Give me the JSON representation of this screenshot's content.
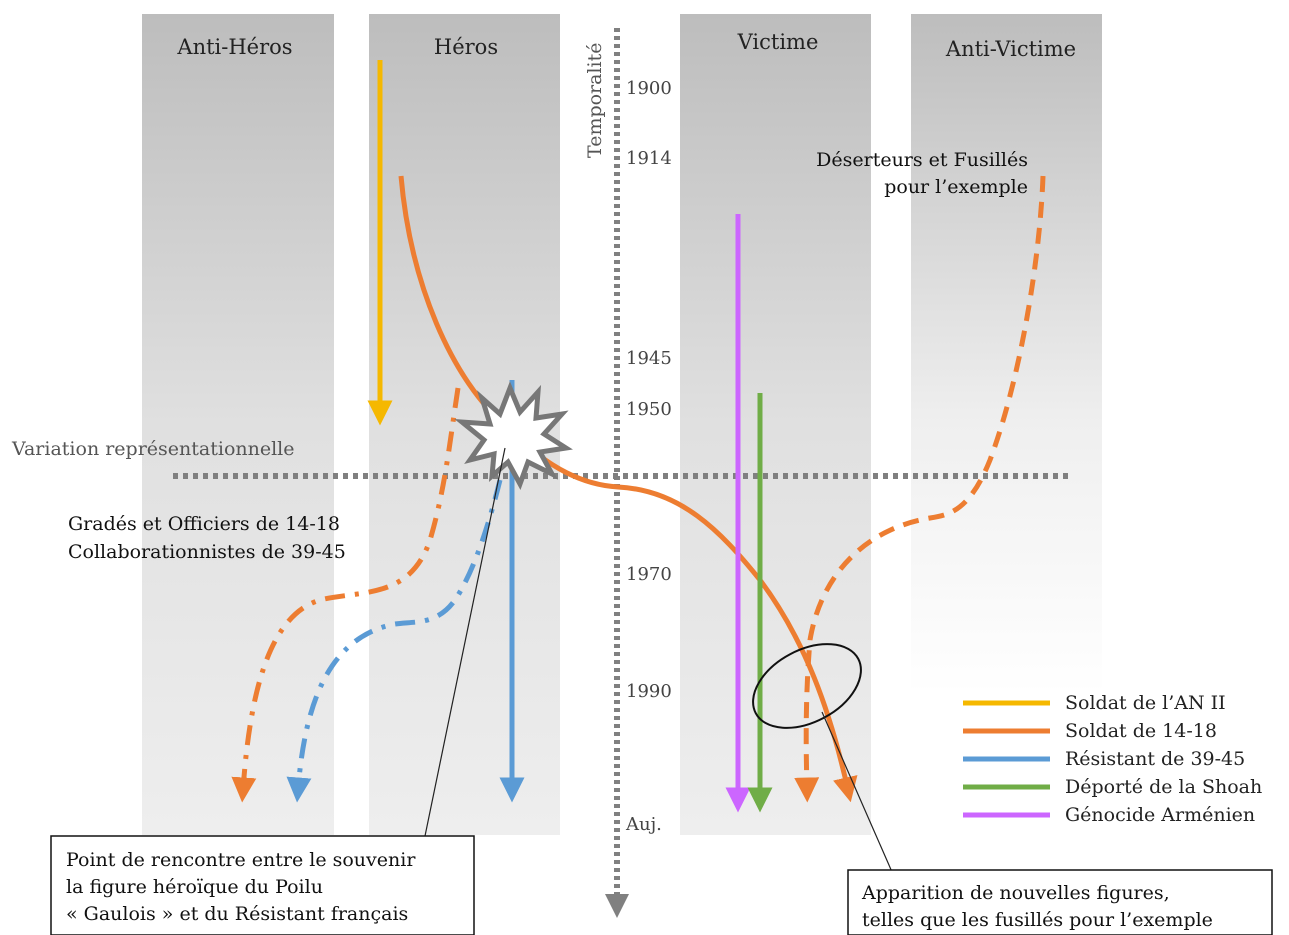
{
  "columns": [
    {
      "key": "anti_heros",
      "label": "Anti-Héros"
    },
    {
      "key": "heros",
      "label": "Héros"
    },
    {
      "key": "victime",
      "label": "Victime"
    },
    {
      "key": "anti_victime",
      "label": "Anti-Victime"
    }
  ],
  "axes": {
    "vertical_label": "Temporalité",
    "horizontal_label": "Variation représentationnelle"
  },
  "years": [
    "1900",
    "1914",
    "1945",
    "1950",
    "1970",
    "1990",
    "Auj."
  ],
  "annotations": {
    "deserteurs_line1": "Déserteurs et Fusillés",
    "deserteurs_line2": "pour l’exemple",
    "grades_line1": "Gradés et Officiers de 14-18",
    "grades_line2": "Collaborationnistes de 39-45"
  },
  "callouts": {
    "rencontre": {
      "line1": "Point de rencontre entre le souvenir",
      "line2": "la figure héroïque du Poilu",
      "line3": "« Gaulois » et du Résistant français"
    },
    "apparition": {
      "line1": "Apparition de nouvelles figures,",
      "line2": "telles que les fusillés pour l’exemple"
    }
  },
  "legend": [
    {
      "label": "Soldat de l’AN II",
      "color": "#f5b800"
    },
    {
      "label": "Soldat de 14-18",
      "color": "#ed7d31"
    },
    {
      "label": "Résistant de 39-45",
      "color": "#5b9bd5"
    },
    {
      "label": "Déporté de la Shoah",
      "color": "#70ad47"
    },
    {
      "label": "Génocide Arménien",
      "color": "#cc66ff"
    }
  ],
  "colors": {
    "column_top": "#bdbdbd",
    "column_bottom": "#eeeeee",
    "axis": "#808080",
    "explosion_stroke": "#777777"
  }
}
